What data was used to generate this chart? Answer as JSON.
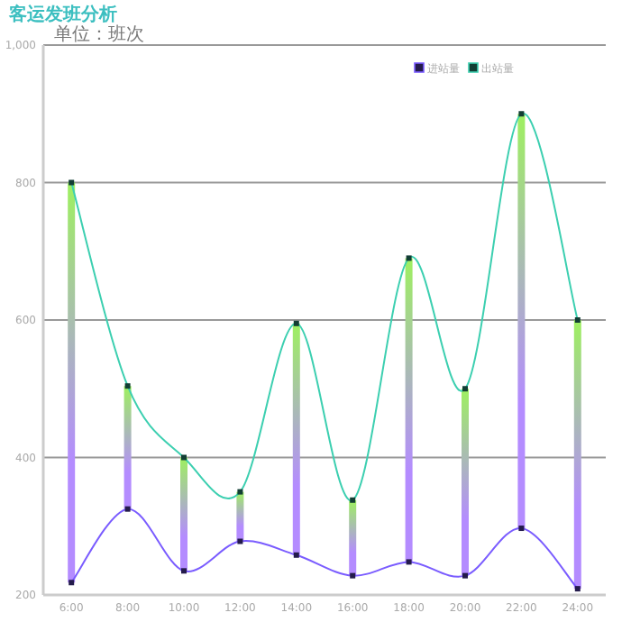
{
  "chart_data": {
    "type": "line",
    "title": "客运发班分析",
    "subtitle": "单位：班次",
    "categories": [
      "6:00",
      "8:00",
      "10:00",
      "12:00",
      "14:00",
      "16:00",
      "18:00",
      "20:00",
      "22:00",
      "24:00"
    ],
    "series": [
      {
        "name": "进站量",
        "color": "#7a5cff",
        "values": [
          218,
          325,
          235,
          278,
          258,
          228,
          248,
          228,
          297,
          209
        ]
      },
      {
        "name": "出站量",
        "color": "#3ccfb0",
        "values": [
          800,
          504,
          400,
          350,
          595,
          338,
          690,
          500,
          900,
          600
        ]
      },
      {
        "type": "bar",
        "base": [
          218,
          325,
          235,
          278,
          258,
          228,
          248,
          228,
          297,
          209
        ],
        "values": [
          582,
          179,
          165,
          72,
          337,
          110,
          442,
          272,
          603,
          391
        ]
      }
    ],
    "ylim": [
      200,
      1000
    ],
    "yticks": [
      200,
      400,
      600,
      800,
      {
        "value": 1000,
        "label": "1,000"
      }
    ],
    "grid": "y",
    "legend": "top right",
    "marker": "square"
  }
}
